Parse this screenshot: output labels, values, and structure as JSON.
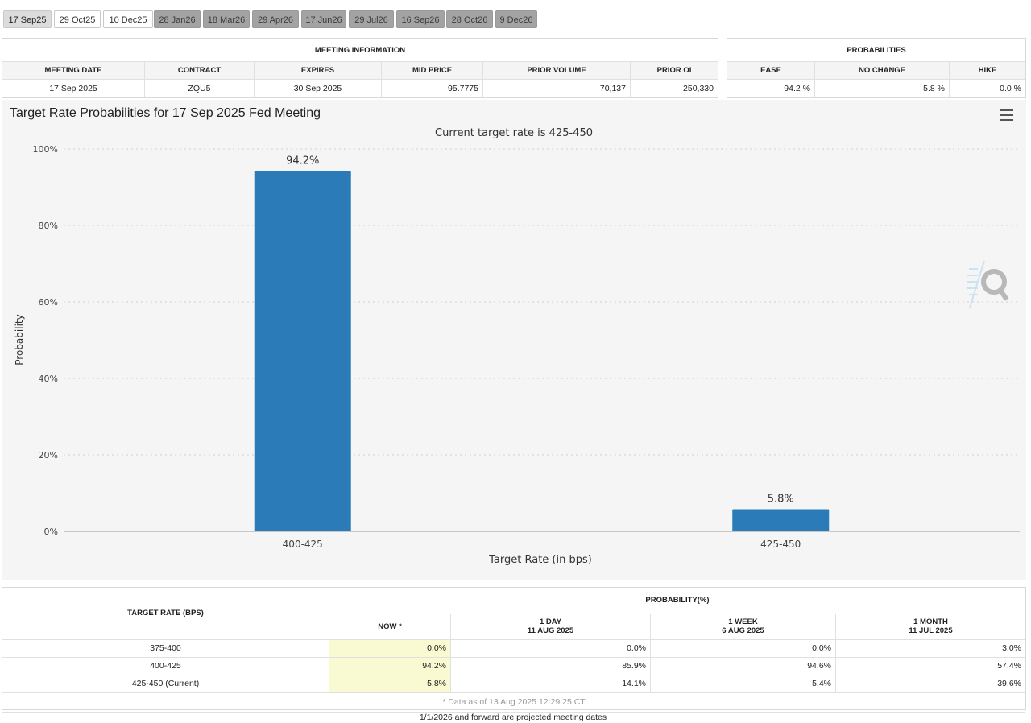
{
  "tabs": [
    {
      "label": "17 Sep25",
      "state": "active"
    },
    {
      "label": "29 Oct25",
      "state": "normal"
    },
    {
      "label": "10 Dec25",
      "state": "normal"
    },
    {
      "label": "28 Jan26",
      "state": "future"
    },
    {
      "label": "18 Mar26",
      "state": "future"
    },
    {
      "label": "29 Apr26",
      "state": "future"
    },
    {
      "label": "17 Jun26",
      "state": "future"
    },
    {
      "label": "29 Jul26",
      "state": "future"
    },
    {
      "label": "16 Sep26",
      "state": "future"
    },
    {
      "label": "28 Oct26",
      "state": "future"
    },
    {
      "label": "9 Dec26",
      "state": "future"
    }
  ],
  "meeting_info": {
    "title": "MEETING INFORMATION",
    "headers": [
      "MEETING DATE",
      "CONTRACT",
      "EXPIRES",
      "MID PRICE",
      "PRIOR VOLUME",
      "PRIOR OI"
    ],
    "values": [
      "17 Sep 2025",
      "ZQU5",
      "30 Sep 2025",
      "95.7775",
      "70,137",
      "250,330"
    ]
  },
  "probabilities": {
    "title": "PROBABILITIES",
    "headers": [
      "EASE",
      "NO CHANGE",
      "HIKE"
    ],
    "values": [
      "94.2 %",
      "5.8 %",
      "0.0 %"
    ]
  },
  "chart_data": {
    "type": "bar",
    "title": "Target Rate Probabilities for 17 Sep 2025 Fed Meeting",
    "subtitle": "Current target rate is 425-450",
    "xlabel": "Target Rate (in bps)",
    "ylabel": "Probability",
    "categories": [
      "400-425",
      "425-450"
    ],
    "values": [
      94.2,
      5.8
    ],
    "data_labels": [
      "94.2%",
      "5.8%"
    ],
    "y_ticks": [
      "0%",
      "20%",
      "40%",
      "60%",
      "80%",
      "100%"
    ],
    "ylim": [
      0,
      100
    ],
    "grid": true,
    "bar_color": "#2b7bb9"
  },
  "prob_table": {
    "rate_header": "TARGET RATE (BPS)",
    "prob_header": "PROBABILITY(%)",
    "columns": [
      {
        "line1": "NOW *",
        "line2": ""
      },
      {
        "line1": "1 DAY",
        "line2": "11 AUG 2025"
      },
      {
        "line1": "1 WEEK",
        "line2": "6 AUG 2025"
      },
      {
        "line1": "1 MONTH",
        "line2": "11 JUL 2025"
      }
    ],
    "rows": [
      {
        "rate": "375-400",
        "values": [
          "0.0%",
          "0.0%",
          "0.0%",
          "3.0%"
        ]
      },
      {
        "rate": "400-425",
        "values": [
          "94.2%",
          "85.9%",
          "94.6%",
          "57.4%"
        ]
      },
      {
        "rate": "425-450 (Current)",
        "values": [
          "5.8%",
          "14.1%",
          "5.4%",
          "39.6%"
        ]
      }
    ],
    "footnote": "* Data as of 13 Aug 2025 12:29:25 CT"
  },
  "bottom_note": "1/1/2026 and forward are projected meeting dates"
}
